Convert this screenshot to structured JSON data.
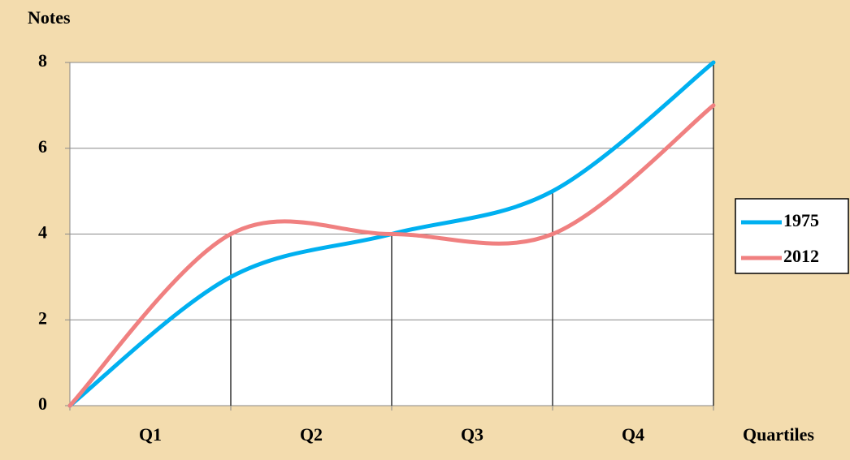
{
  "chart_data": {
    "type": "line",
    "y_label": "Notes",
    "x_label": "Quartiles",
    "x": [
      0,
      1,
      2,
      3,
      4
    ],
    "xlim": [
      0,
      4
    ],
    "xticks": [
      0,
      1,
      2,
      3,
      4
    ],
    "categories": [
      "Q1",
      "Q2",
      "Q3",
      "Q4"
    ],
    "ylim": [
      0,
      8
    ],
    "yticks": [
      0,
      2,
      4,
      6,
      8
    ],
    "grid": true,
    "smooth": true,
    "drop_lines": true,
    "legend": "right",
    "series": [
      {
        "name": "1975",
        "color": "#00b0f0",
        "values": [
          0,
          3,
          4,
          5,
          8
        ]
      },
      {
        "name": "2012",
        "color": "#f08080",
        "values": [
          0,
          4,
          4,
          4,
          7
        ]
      }
    ]
  }
}
